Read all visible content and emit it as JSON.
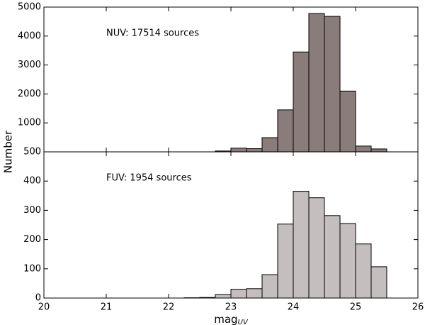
{
  "chart_data": [
    {
      "type": "histogram",
      "annotation": "NUV: 17514 sources",
      "ylabel": "Number",
      "color": "#8a7c7a",
      "bins": [
        22.75,
        23,
        23.25,
        23.5,
        23.75,
        24,
        24.25,
        24.5,
        24.75,
        25,
        25.25,
        25.5
      ],
      "values": [
        30,
        130,
        110,
        490,
        1450,
        3450,
        4780,
        4680,
        2100,
        200,
        100
      ],
      "xlim": [
        20,
        26
      ],
      "xticks": [
        20,
        21,
        22,
        23,
        24,
        25,
        26
      ],
      "ylim": [
        0,
        5000
      ],
      "yticks": [
        1000,
        2000,
        3000,
        4000,
        5000
      ]
    },
    {
      "type": "histogram",
      "annotation": "FUV: 1954 sources",
      "xlabel": "mag",
      "xlabel_subscript": "UV",
      "color": "#c4bebe",
      "bins": [
        22.25,
        22.5,
        22.75,
        23,
        23.25,
        23.5,
        23.75,
        24,
        24.25,
        24.5,
        24.75,
        25,
        25.25,
        25.5
      ],
      "values": [
        1,
        2,
        12,
        30,
        32,
        80,
        253,
        365,
        343,
        282,
        255,
        185,
        107
      ],
      "xlim": [
        20,
        26
      ],
      "xticks": [
        20,
        21,
        22,
        23,
        24,
        25,
        26
      ],
      "ylim": [
        0,
        500
      ],
      "yticks": [
        0,
        100,
        200,
        300,
        400,
        500
      ]
    }
  ]
}
